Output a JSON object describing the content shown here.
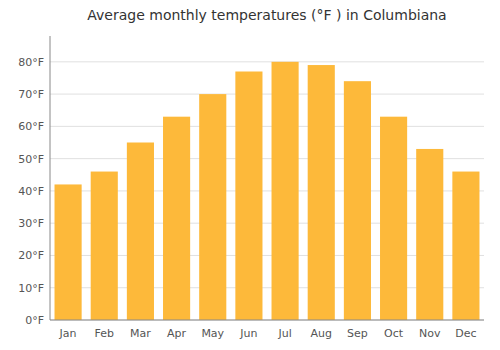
{
  "chart_data": {
    "type": "bar",
    "title": "Average monthly temperatures (°F ) in Columbiana",
    "categories": [
      "Jan",
      "Feb",
      "Mar",
      "Apr",
      "May",
      "Jun",
      "Jul",
      "Aug",
      "Sep",
      "Oct",
      "Nov",
      "Dec"
    ],
    "values": [
      42,
      46,
      55,
      63,
      70,
      77,
      80,
      79,
      74,
      63,
      53,
      46
    ],
    "color": "#FDB93A",
    "ylim": [
      0,
      88
    ],
    "yticks": [
      {
        "value": 0,
        "label": "0°F"
      },
      {
        "value": 10,
        "label": "10°F"
      },
      {
        "value": 20,
        "label": "20°F"
      },
      {
        "value": 30,
        "label": "30°F"
      },
      {
        "value": 40,
        "label": "40°F"
      },
      {
        "value": 50,
        "label": "50°F"
      },
      {
        "value": 60,
        "label": "60°F"
      },
      {
        "value": 70,
        "label": "70°F"
      },
      {
        "value": 80,
        "label": "80°F"
      }
    ],
    "grid": true
  }
}
